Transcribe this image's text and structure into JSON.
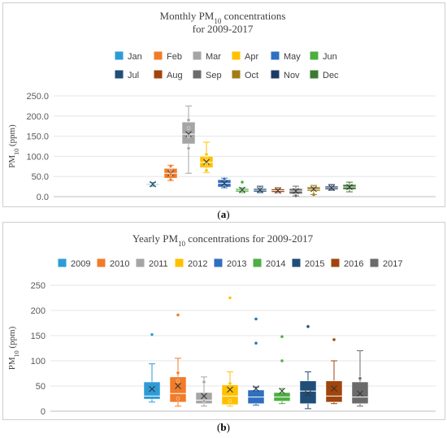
{
  "charts": [
    {
      "id": "a",
      "title_line1": "Monthly PM",
      "title_sub": "10",
      "title_line1_tail": " concentrations",
      "title_line2": "for 2009-2017",
      "ylabel_main": "PM",
      "ylabel_sub": "10",
      "ylabel_tail": " (ppm)",
      "caption_label": "a",
      "legend_rows": [
        [
          "Jan",
          "Feb",
          "Mar",
          "Apr",
          "May",
          "Jun"
        ],
        [
          "Jul",
          "Aug",
          "Sep",
          "Oct",
          "Nov",
          "Dec"
        ]
      ],
      "yticks": [
        "0.0",
        "50.0",
        "100.0",
        "150.0",
        "200.0",
        "250.0"
      ]
    },
    {
      "id": "b",
      "title_line1": "Yearly PM",
      "title_sub": "10",
      "title_line1_tail": " concentrations for 2009-2017",
      "ylabel_main": "PM",
      "ylabel_sub": "10",
      "ylabel_tail": " (ppm)",
      "caption_label": "b",
      "legend_rows": [
        [
          "2009",
          "2010",
          "2011",
          "2012",
          "2013",
          "2014",
          "2015",
          "2016",
          "2017"
        ]
      ],
      "yticks": [
        "0",
        "50",
        "100",
        "150",
        "200",
        "250"
      ]
    }
  ],
  "chart_data": [
    {
      "type": "box",
      "title": "Monthly PM10 concentrations for 2009-2017",
      "ylabel": "PM10 (ppm)",
      "ylim": [
        0,
        250
      ],
      "categories": [
        "Jan",
        "Feb",
        "Mar",
        "Apr",
        "May",
        "Jun",
        "Jul",
        "Aug",
        "Sep",
        "Oct",
        "Nov",
        "Dec"
      ],
      "colors": [
        "#2e9bd6",
        "#f07c2a",
        "#a5a5a5",
        "#ffc000",
        "#2f6fbf",
        "#4caf3f",
        "#1f4e79",
        "#a0450c",
        "#6b6b6b",
        "#a07c14",
        "#1c3a66",
        "#3c7a2f"
      ],
      "series": [
        {
          "name": "Jan",
          "min": 26,
          "q1": 29,
          "median": 31,
          "q3": 33,
          "max": 35,
          "mean": 31,
          "points": []
        },
        {
          "name": "Feb",
          "min": 40,
          "q1": 46,
          "median": 58,
          "q3": 70,
          "max": 78,
          "mean": 58,
          "points": [
            42,
            55,
            65,
            76
          ]
        },
        {
          "name": "Mar",
          "min": 58,
          "q1": 131,
          "median": 155,
          "q3": 185,
          "max": 225,
          "mean": 155,
          "points": [
            120,
            150,
            170,
            190
          ]
        },
        {
          "name": "Apr",
          "min": 60,
          "q1": 72,
          "median": 85,
          "q3": 100,
          "max": 135,
          "mean": 86,
          "points": [
            65,
            80,
            95,
            105
          ]
        },
        {
          "name": "May",
          "min": 22,
          "q1": 24,
          "median": 33,
          "q3": 42,
          "max": 46,
          "mean": 33,
          "points": [
            24,
            44
          ]
        },
        {
          "name": "Jun",
          "min": 10,
          "q1": 12,
          "median": 16,
          "q3": 20,
          "max": 22,
          "mean": 17,
          "points": [
            36
          ]
        },
        {
          "name": "Jul",
          "min": 10,
          "q1": 12,
          "median": 16,
          "q3": 20,
          "max": 26,
          "mean": 17,
          "points": []
        },
        {
          "name": "Aug",
          "min": 10,
          "q1": 11,
          "median": 15,
          "q3": 19,
          "max": 22,
          "mean": 15,
          "points": []
        },
        {
          "name": "Sep",
          "min": 2,
          "q1": 7,
          "median": 14,
          "q3": 20,
          "max": 26,
          "mean": 14,
          "points": [
            2
          ]
        },
        {
          "name": "Oct",
          "min": 5,
          "q1": 14,
          "median": 18,
          "q3": 24,
          "max": 28,
          "mean": 19,
          "points": [
            5
          ]
        },
        {
          "name": "Nov",
          "min": 16,
          "q1": 18,
          "median": 22,
          "q3": 26,
          "max": 30,
          "mean": 22,
          "points": []
        },
        {
          "name": "Dec",
          "min": 12,
          "q1": 18,
          "median": 24,
          "q3": 30,
          "max": 36,
          "mean": 24,
          "points": []
        }
      ]
    },
    {
      "type": "box",
      "title": "Yearly PM10 concentrations for 2009-2017",
      "ylabel": "PM10 (ppm)",
      "ylim": [
        0,
        250
      ],
      "categories": [
        "2009",
        "2010",
        "2011",
        "2012",
        "2013",
        "2014",
        "2015",
        "2016",
        "2017"
      ],
      "colors": [
        "#2e9bd6",
        "#f07c2a",
        "#a5a5a5",
        "#ffc000",
        "#2f6fbf",
        "#4caf3f",
        "#1f4e79",
        "#a0450c",
        "#6b6b6b"
      ],
      "series": [
        {
          "name": "2009",
          "min": 18,
          "q1": 24,
          "median": 30,
          "q3": 58,
          "max": 94,
          "mean": 44,
          "points": [
            152
          ]
        },
        {
          "name": "2010",
          "min": 10,
          "q1": 18,
          "median": 35,
          "q3": 68,
          "max": 105,
          "mean": 50,
          "points": [
            191,
            25,
            60,
            76
          ]
        },
        {
          "name": "2011",
          "min": 10,
          "q1": 15,
          "median": 22,
          "q3": 37,
          "max": 68,
          "mean": 30,
          "points": [
            58,
            20
          ]
        },
        {
          "name": "2012",
          "min": 10,
          "q1": 13,
          "median": 30,
          "q3": 52,
          "max": 78,
          "mean": 43,
          "points": [
            225,
            20,
            55
          ]
        },
        {
          "name": "2013",
          "min": 12,
          "q1": 15,
          "median": 28,
          "q3": 42,
          "max": 48,
          "mean": 45,
          "points": [
            183,
            135
          ]
        },
        {
          "name": "2014",
          "min": 15,
          "q1": 20,
          "median": 28,
          "q3": 37,
          "max": 45,
          "mean": 40,
          "points": [
            148,
            100
          ]
        },
        {
          "name": "2015",
          "min": 5,
          "q1": 15,
          "median": 40,
          "q3": 60,
          "max": 78,
          "mean": 35,
          "points": [
            168
          ]
        },
        {
          "name": "2016",
          "min": 15,
          "q1": 18,
          "median": 30,
          "q3": 60,
          "max": 100,
          "mean": 45,
          "points": [
            142
          ]
        },
        {
          "name": "2017",
          "min": 10,
          "q1": 15,
          "median": 28,
          "q3": 58,
          "max": 120,
          "mean": 35,
          "points": [
            65
          ]
        }
      ]
    }
  ]
}
